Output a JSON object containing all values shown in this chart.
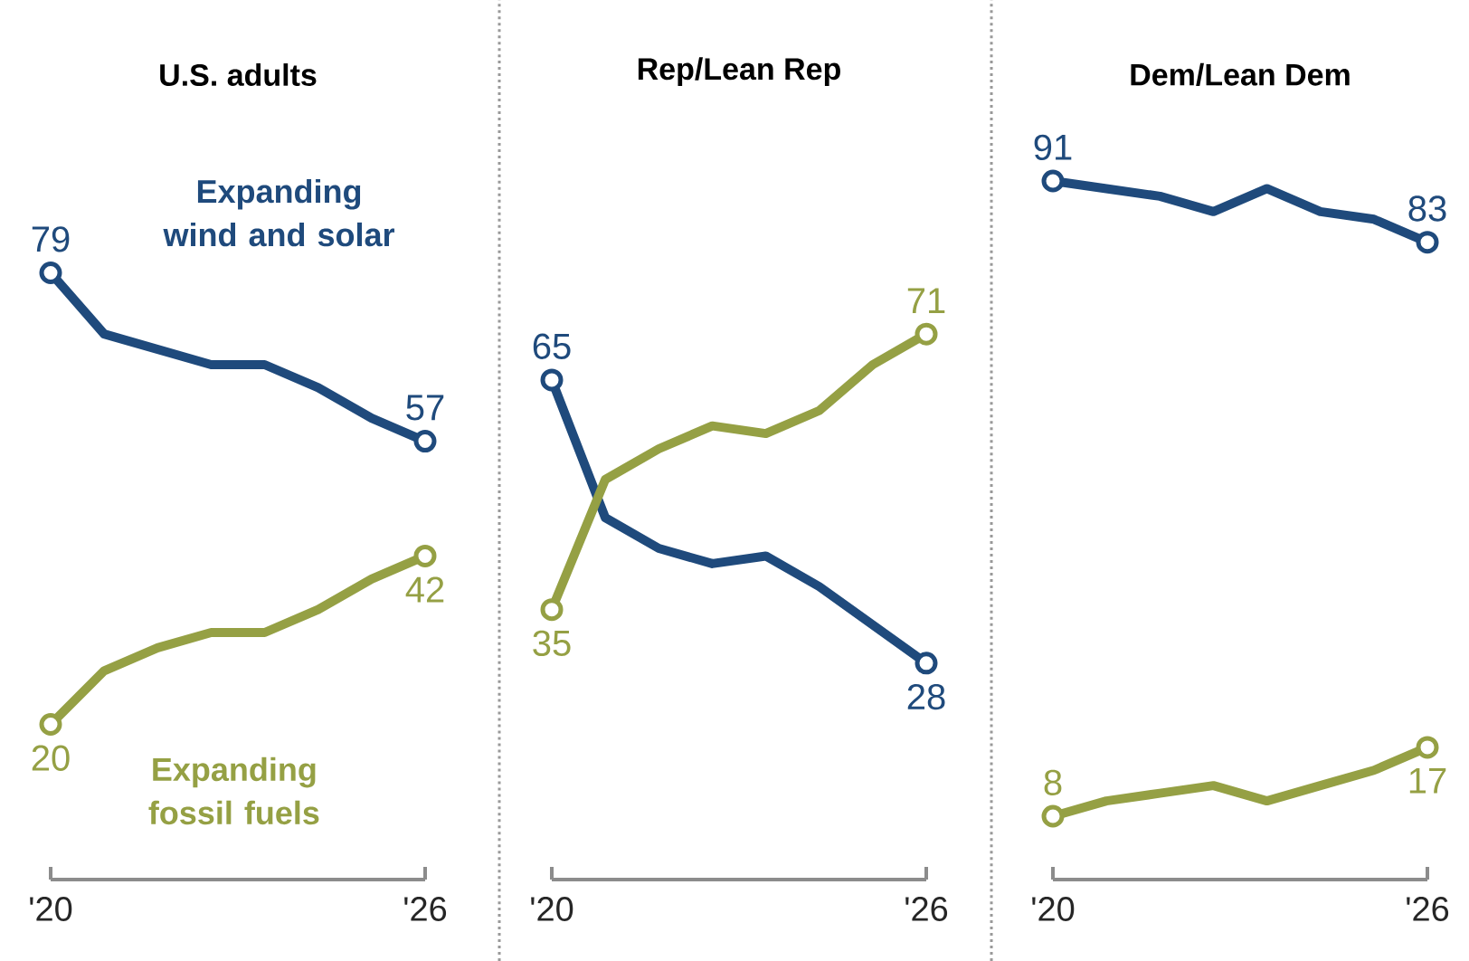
{
  "chart_data": [
    {
      "type": "line",
      "title": "U.S. adults",
      "categories": [
        "'20",
        null,
        null,
        null,
        null,
        null,
        null,
        "'26"
      ],
      "tick_labels": "x",
      "series": [
        {
          "name": "Expanding wind and solar",
          "color": "#1f4a7c",
          "values": [
            79,
            71,
            69,
            67,
            67,
            64,
            60,
            57
          ],
          "value_labels": [
            "79",
            null,
            null,
            null,
            null,
            null,
            null,
            "57"
          ]
        },
        {
          "name": "Expanding fossil fuels",
          "color": "#95a044",
          "values": [
            20,
            27,
            30,
            32,
            32,
            35,
            39,
            42
          ],
          "value_labels": [
            "20",
            null,
            null,
            null,
            null,
            null,
            null,
            "42"
          ]
        }
      ]
    },
    {
      "type": "line",
      "title": "Rep/Lean Rep",
      "categories": [
        "'20",
        null,
        null,
        null,
        null,
        null,
        null,
        "'26"
      ],
      "tick_labels": "x",
      "series": [
        {
          "color": "#1f4a7c",
          "values": [
            65,
            47,
            43,
            41,
            42,
            38,
            33,
            28
          ],
          "value_labels": [
            "65",
            null,
            null,
            null,
            null,
            null,
            null,
            "28"
          ]
        },
        {
          "color": "#95a044",
          "values": [
            35,
            52,
            56,
            59,
            58,
            61,
            67,
            71
          ],
          "value_labels": [
            "35",
            null,
            null,
            null,
            null,
            null,
            null,
            "71"
          ]
        }
      ]
    },
    {
      "type": "line",
      "title": "Dem/Lean Dem",
      "categories": [
        "'20",
        null,
        null,
        null,
        null,
        null,
        null,
        "'26"
      ],
      "tick_labels": "x",
      "series": [
        {
          "color": "#1f4a7c",
          "values": [
            91,
            90,
            89,
            87,
            90,
            87,
            86,
            83
          ],
          "value_labels": [
            "91",
            null,
            null,
            null,
            null,
            null,
            null,
            "83"
          ]
        },
        {
          "color": "#95a044",
          "values": [
            8,
            10,
            11,
            12,
            10,
            12,
            14,
            17
          ],
          "value_labels": [
            "8",
            null,
            null,
            null,
            null,
            null,
            null,
            "17"
          ]
        }
      ]
    }
  ]
}
